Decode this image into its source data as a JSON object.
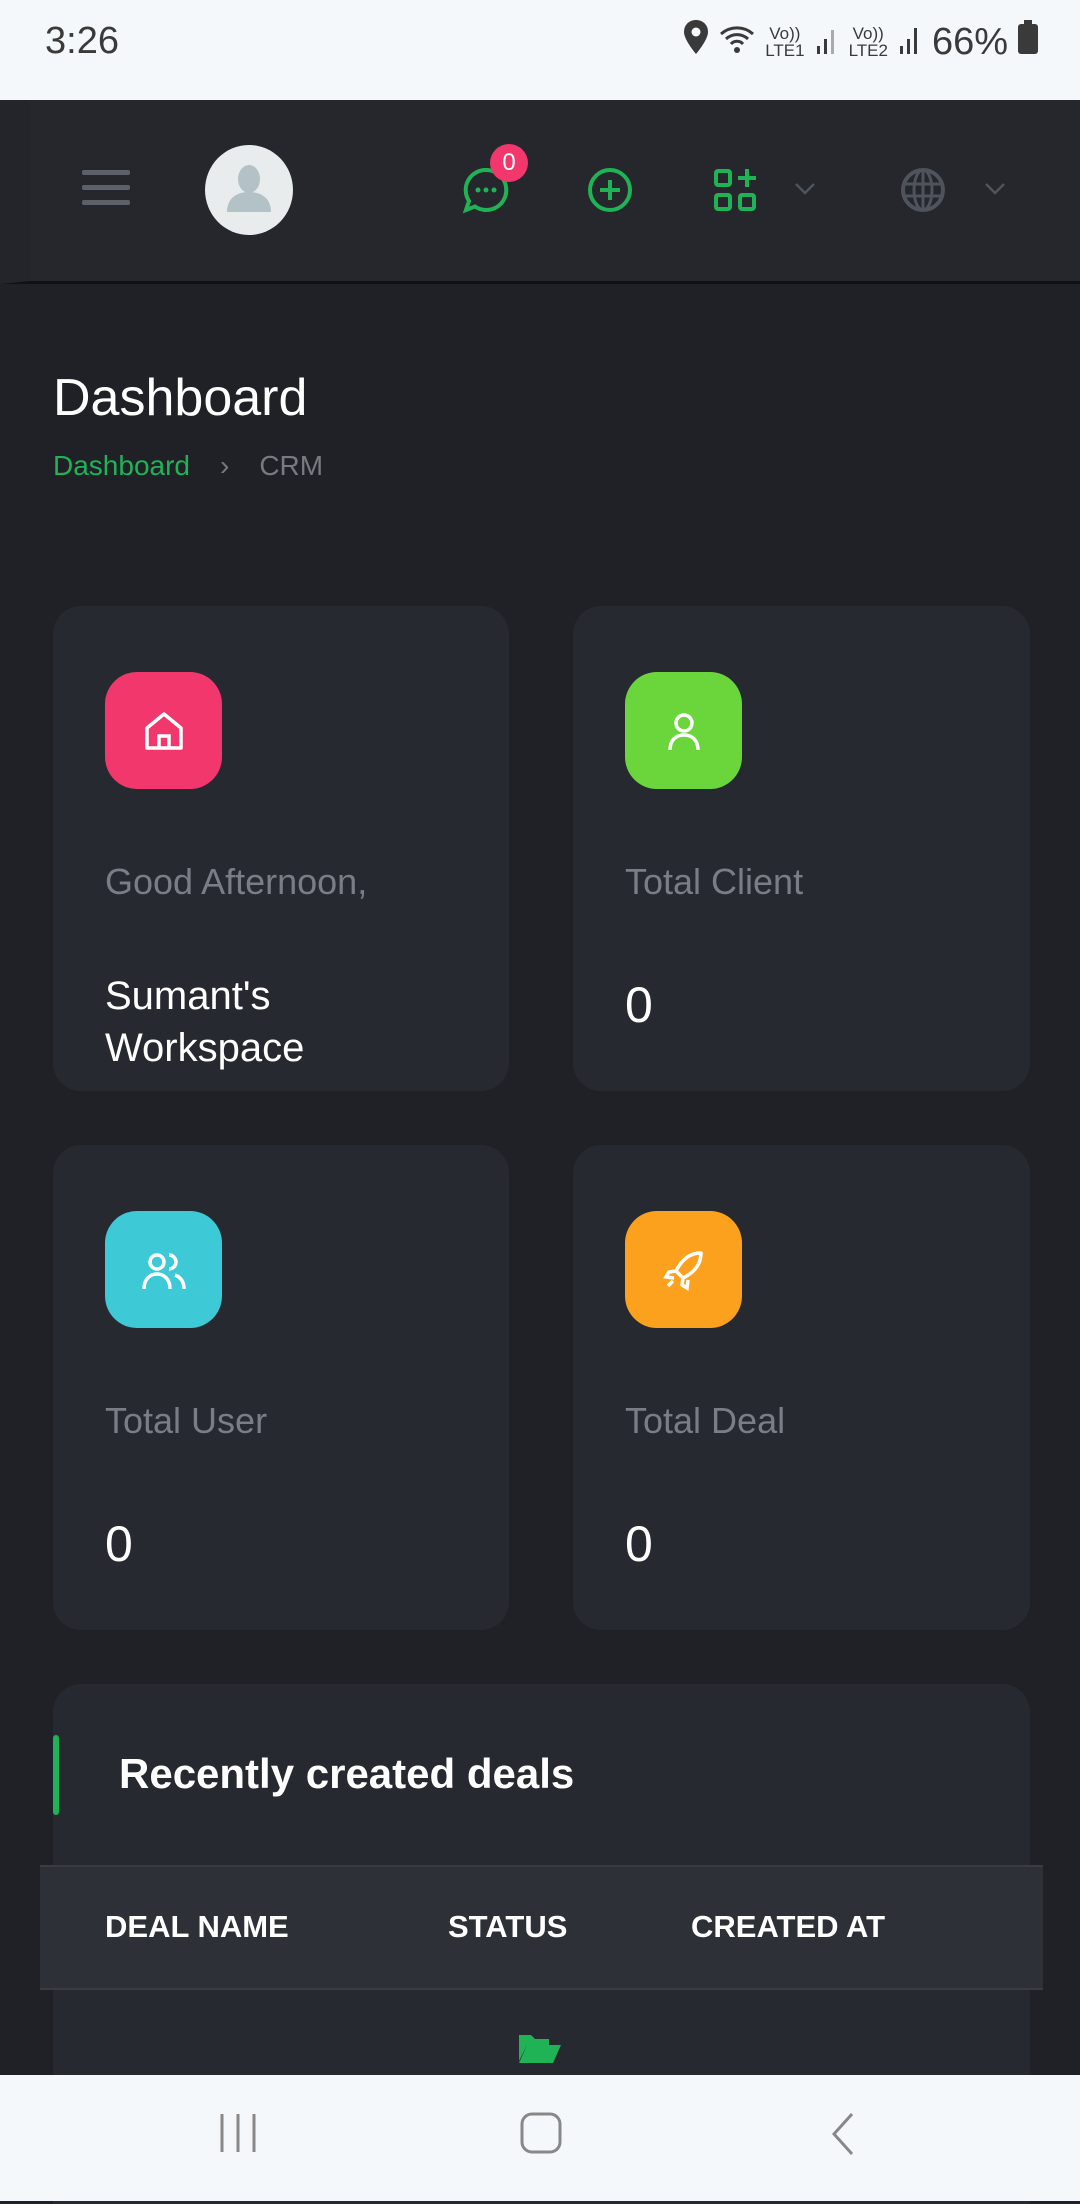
{
  "status_bar": {
    "time": "3:26",
    "network_1": "LTE1",
    "network_2": "LTE2",
    "battery": "66%"
  },
  "header": {
    "notification_count": "0",
    "accent": "#1fb356"
  },
  "page": {
    "title": "Dashboard",
    "breadcrumb": [
      {
        "label": "Dashboard"
      },
      {
        "label": "CRM"
      }
    ]
  },
  "cards": [
    {
      "icon": "home-icon",
      "color": "#f1376c",
      "label": "Good Afternoon,",
      "value": "Sumant's Workspace"
    },
    {
      "icon": "user-icon",
      "color": "#6ad63b",
      "label": "Total Client",
      "value": "0"
    },
    {
      "icon": "users-icon",
      "color": "#3ec9d6",
      "label": "Total User",
      "value": "0"
    },
    {
      "icon": "rocket-icon",
      "color": "#fca11e",
      "label": "Total Deal",
      "value": "0"
    }
  ],
  "deals": {
    "title": "Recently created deals",
    "columns": [
      "DEAL NAME",
      "STATUS",
      "CREATED AT"
    ],
    "empty_icon": "folder-open-icon"
  }
}
